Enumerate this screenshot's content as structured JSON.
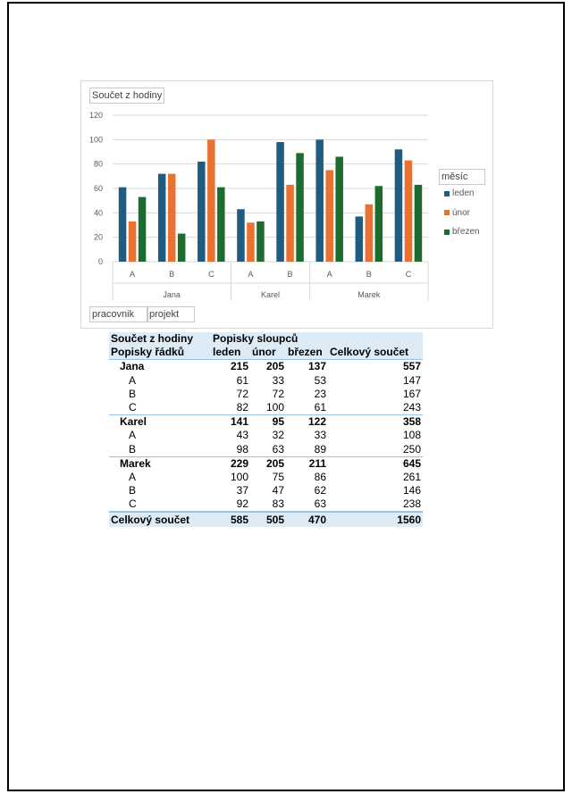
{
  "chart": {
    "title": "Součet z hodiny",
    "legend_title": "měsíc",
    "field_buttons": [
      "pracovnik",
      "projekt"
    ]
  },
  "chart_data": {
    "type": "bar",
    "title": "Součet z hodiny",
    "groups": [
      {
        "name": "Jana",
        "categories": [
          "A",
          "B",
          "C"
        ]
      },
      {
        "name": "Karel",
        "categories": [
          "A",
          "B"
        ]
      },
      {
        "name": "Marek",
        "categories": [
          "A",
          "B",
          "C"
        ]
      }
    ],
    "series": [
      {
        "name": "leden",
        "color": "#1f5c80",
        "values": [
          61,
          72,
          82,
          43,
          98,
          100,
          37,
          92
        ]
      },
      {
        "name": "únor",
        "color": "#e97132",
        "values": [
          33,
          72,
          100,
          32,
          63,
          75,
          47,
          83
        ]
      },
      {
        "name": "březen",
        "color": "#1e6b30",
        "values": [
          53,
          23,
          61,
          33,
          89,
          86,
          62,
          63
        ]
      }
    ],
    "yticks": [
      0,
      20,
      40,
      60,
      80,
      100,
      120
    ],
    "ylim": [
      0,
      120
    ],
    "grid": true,
    "legend": "right"
  },
  "pivot": {
    "header": {
      "values_label": "Součet z hodiny",
      "columns_label": "Popisky sloupců",
      "rows_label": "Popisky řádků",
      "months": [
        "leden",
        "únor",
        "březen"
      ],
      "grand_total_label": "Celkový součet"
    },
    "rows": [
      {
        "label": "Jana",
        "level": "group",
        "values": [
          "215",
          "205",
          "137",
          "557"
        ]
      },
      {
        "label": "A",
        "level": "sub",
        "values": [
          "61",
          "33",
          "53",
          "147"
        ]
      },
      {
        "label": "B",
        "level": "sub",
        "values": [
          "72",
          "72",
          "23",
          "167"
        ]
      },
      {
        "label": "C",
        "level": "sub",
        "values": [
          "82",
          "100",
          "61",
          "243"
        ]
      },
      {
        "label": "Karel",
        "level": "group",
        "values": [
          "141",
          "95",
          "122",
          "358"
        ]
      },
      {
        "label": "A",
        "level": "sub",
        "values": [
          "43",
          "32",
          "33",
          "108"
        ]
      },
      {
        "label": "B",
        "level": "sub",
        "values": [
          "98",
          "63",
          "89",
          "250"
        ]
      },
      {
        "label": "Marek",
        "level": "group",
        "values": [
          "229",
          "205",
          "211",
          "645"
        ]
      },
      {
        "label": "A",
        "level": "sub",
        "values": [
          "100",
          "75",
          "86",
          "261"
        ]
      },
      {
        "label": "B",
        "level": "sub",
        "values": [
          "37",
          "47",
          "62",
          "146"
        ]
      },
      {
        "label": "C",
        "level": "sub",
        "values": [
          "92",
          "83",
          "63",
          "238"
        ]
      }
    ],
    "total": {
      "label": "Celkový součet",
      "values": [
        "585",
        "505",
        "470",
        "1560"
      ]
    }
  }
}
